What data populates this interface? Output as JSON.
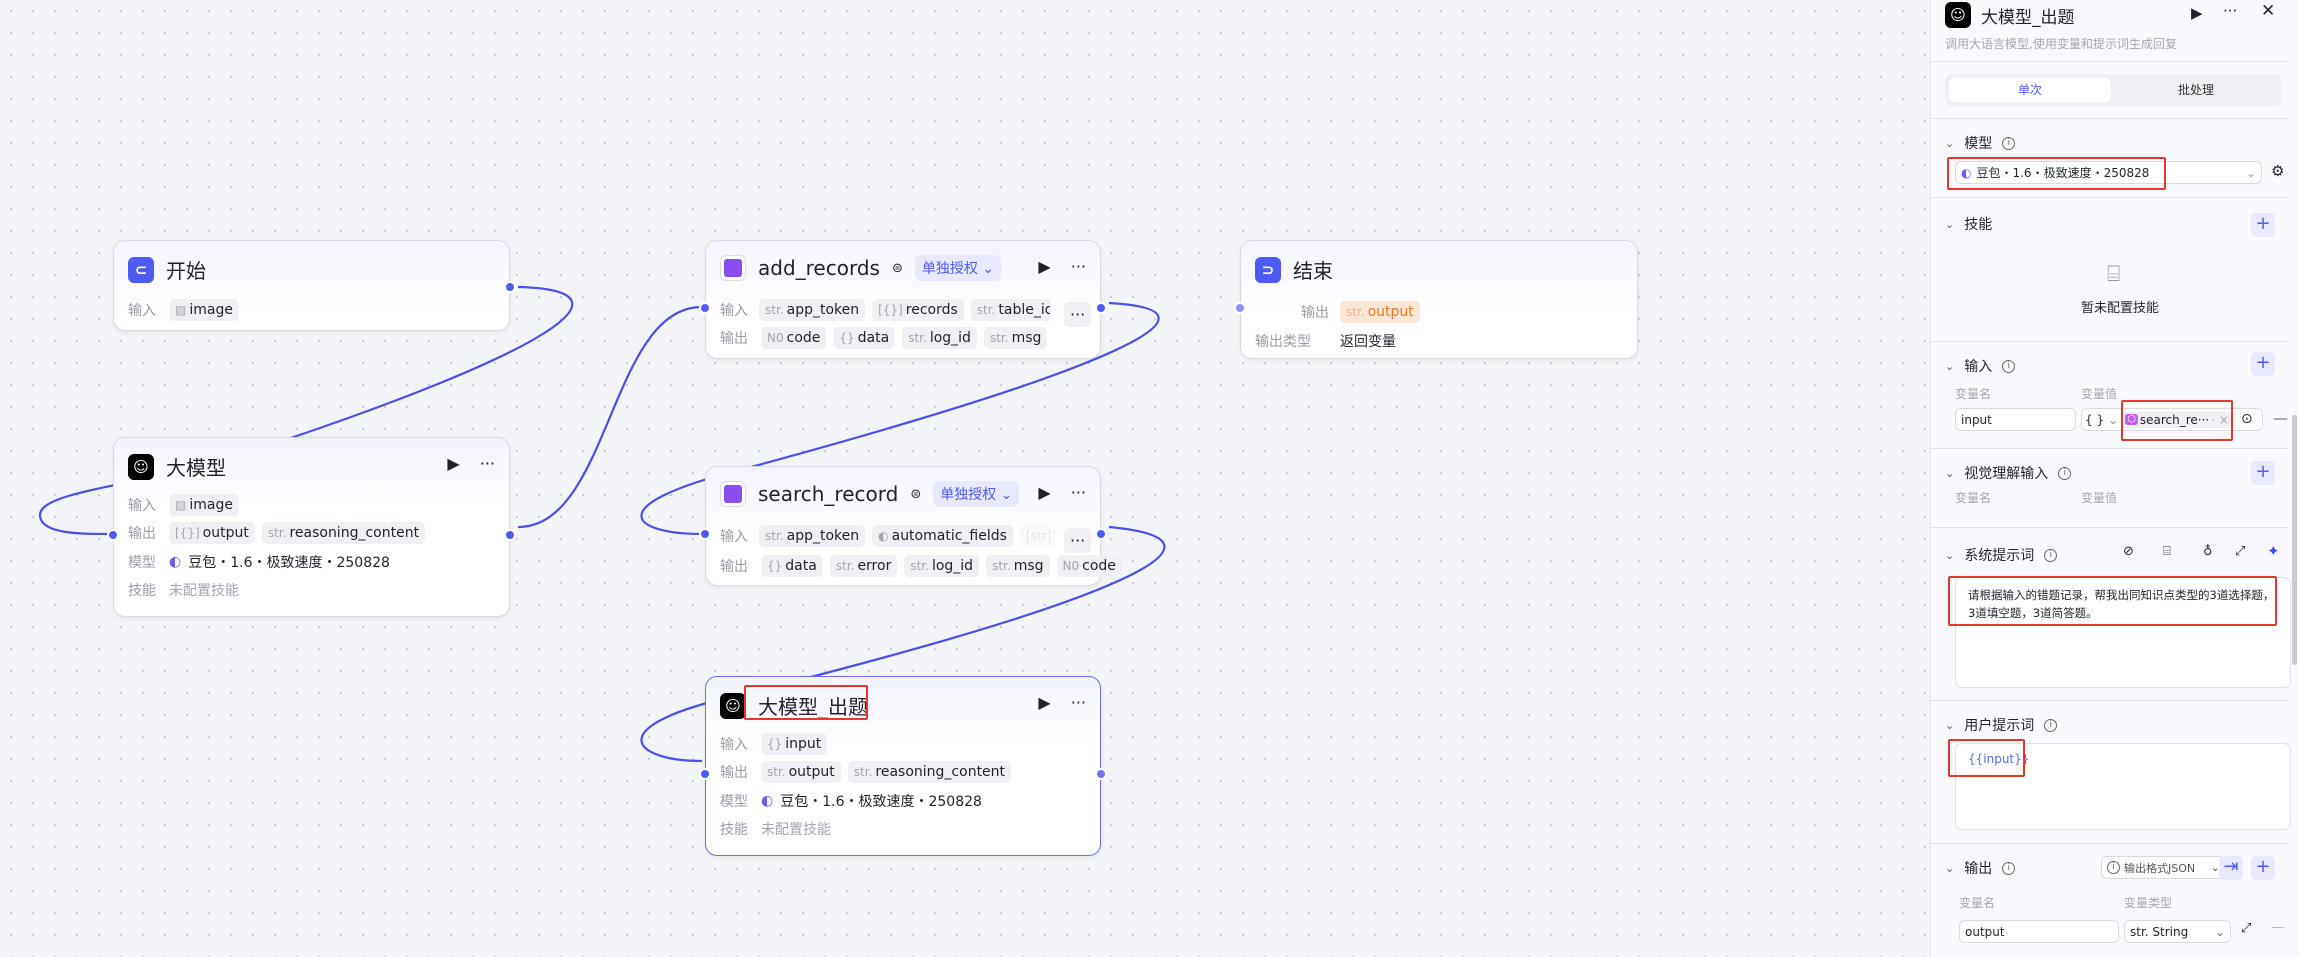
{
  "nodes": {
    "start": {
      "title": "开始",
      "input_label": "输入",
      "inputs": [
        "image"
      ]
    },
    "llm": {
      "title": "大模型",
      "input_label": "输入",
      "output_label": "输出",
      "model_label": "模型",
      "skill_label": "技能",
      "inputs": [
        "image"
      ],
      "outputs": [
        {
          "type": "[{}]",
          "name": "output"
        },
        {
          "type": "str.",
          "name": "reasoning_content"
        }
      ],
      "model": "豆包・1.6・极致速度・250828",
      "skill": "未配置技能"
    },
    "add_records": {
      "title": "add_records",
      "auth": "单独授权",
      "input_label": "输入",
      "output_label": "输出",
      "inputs": [
        {
          "type": "str.",
          "name": "app_token"
        },
        {
          "type": "[{}]",
          "name": "records"
        },
        {
          "type": "str.",
          "name": "table_id"
        },
        {
          "type": "str.",
          "name": ""
        }
      ],
      "outputs": [
        {
          "type": "N0",
          "name": "code"
        },
        {
          "type": "{}",
          "name": "data"
        },
        {
          "type": "str.",
          "name": "log_id"
        },
        {
          "type": "str.",
          "name": "msg"
        }
      ]
    },
    "search_record": {
      "title": "search_record",
      "auth": "单独授权",
      "input_label": "输入",
      "output_label": "输出",
      "inputs": [
        {
          "type": "◐",
          "name": "automatic_fields"
        },
        {
          "type": "[str]",
          "name": "fiel"
        }
      ],
      "input0": {
        "type": "str.",
        "name": "app_token"
      },
      "outputs": [
        {
          "type": "{}",
          "name": "data"
        },
        {
          "type": "str.",
          "name": "error"
        },
        {
          "type": "str.",
          "name": "log_id"
        },
        {
          "type": "str.",
          "name": "msg"
        },
        {
          "type": "N0",
          "name": "code"
        }
      ]
    },
    "llm_quiz": {
      "title": "大模型_出题",
      "input_label": "输入",
      "output_label": "输出",
      "model_label": "模型",
      "skill_label": "技能",
      "inputs": [
        {
          "type": "{}",
          "name": "input"
        }
      ],
      "outputs": [
        {
          "type": "str.",
          "name": "output"
        },
        {
          "type": "str.",
          "name": "reasoning_content"
        }
      ],
      "model": "豆包・1.6・极致速度・250828",
      "skill": "未配置技能"
    },
    "end": {
      "title": "结束",
      "output_label": "输出",
      "output_type_label": "输出类型",
      "output": {
        "type": "str.",
        "name": "output"
      },
      "output_type": "返回变量"
    }
  },
  "panel": {
    "title": "大模型_出题",
    "subtitle": "调用大语言模型,使用变量和提示词生成回复",
    "tabs": [
      "单次",
      "批处理"
    ],
    "active_tab": "单次",
    "model": {
      "label": "模型",
      "value": "豆包・1.6・极致速度・250828"
    },
    "skills": {
      "label": "技能",
      "empty": "暂未配置技能"
    },
    "input": {
      "label": "输入",
      "col_name": "变量名",
      "col_value": "变量值",
      "row": {
        "name": "input",
        "type": "{ }",
        "value": "search_re···"
      }
    },
    "vision": {
      "label": "视觉理解输入",
      "col_name": "变量名",
      "col_value": "变量值"
    },
    "system_prompt": {
      "label": "系统提示词",
      "text": "请根据输入的错题记录，帮我出同知识点类型的3道选择题，3道填空题，3道简答题。"
    },
    "user_prompt": {
      "label": "用户提示词",
      "text": "{{input}}"
    },
    "output": {
      "label": "输出",
      "format": "输出格式JSON",
      "col_name": "变量名",
      "col_type": "变量类型",
      "row": {
        "name": "output",
        "type": "str. String"
      }
    }
  },
  "colors": {
    "accent": "#4f5bf5",
    "highlight": "#e5362f",
    "edge": "#4f4ff0"
  }
}
